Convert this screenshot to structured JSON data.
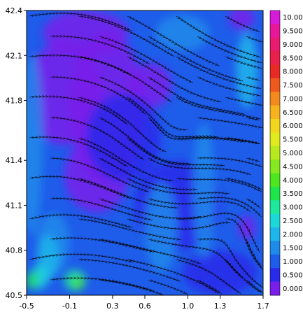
{
  "chart_data": {
    "type": "heatmap",
    "title": "",
    "xlabel": "",
    "ylabel": "",
    "xlim": [
      -0.5,
      1.7
    ],
    "ylim": [
      40.5,
      42.4
    ],
    "x_ticks": [
      "-0.5",
      "-0.1",
      "0.3",
      "0.6",
      "1.0",
      "1.3",
      "1.7"
    ],
    "x_tick_values": [
      -0.5,
      -0.1,
      0.3,
      0.6,
      1.0,
      1.3,
      1.7
    ],
    "y_ticks": [
      "40.5",
      "40.8",
      "41.1",
      "41.4",
      "41.8",
      "42.1",
      "42.4"
    ],
    "y_tick_values": [
      40.5,
      40.8,
      41.1,
      41.4,
      41.8,
      42.1,
      42.4
    ],
    "overlay": "streamlines",
    "colorbar": {
      "labels": [
        "10.00",
        "9.500",
        "9.000",
        "8.500",
        "8.000",
        "7.500",
        "7.000",
        "6.500",
        "6.000",
        "5.500",
        "5.000",
        "4.500",
        "4.000",
        "3.500",
        "3.000",
        "2.500",
        "2.000",
        "1.500",
        "1.000",
        "0.500",
        "0.000"
      ],
      "colors": [
        "#d51bd8",
        "#e8179a",
        "#e81b6e",
        "#e8204a",
        "#e82a25",
        "#ee5a1e",
        "#f28a1e",
        "#f6b31e",
        "#f2d61e",
        "#e0ea1e",
        "#b7ea1e",
        "#86e81e",
        "#4ee61e",
        "#1ee64a",
        "#1ee89c",
        "#1ed8d8",
        "#1eb6ea",
        "#1e8aea",
        "#1e5cea",
        "#2a2aea",
        "#7a1eea"
      ]
    },
    "field": {
      "background_level": 1.0,
      "regions": [
        {
          "level": 0.0,
          "x": -0.15,
          "y": 41.85,
          "rx": 0.35,
          "ry": 0.35
        },
        {
          "level": 0.0,
          "x": 0.25,
          "y": 41.75,
          "rx": 0.35,
          "ry": 0.5
        },
        {
          "level": 0.0,
          "x": 0.15,
          "y": 41.3,
          "rx": 0.3,
          "ry": 0.25
        },
        {
          "level": 0.0,
          "x": 0.05,
          "y": 42.25,
          "rx": 0.4,
          "ry": 0.15
        },
        {
          "level": 0.0,
          "x": 0.65,
          "y": 41.9,
          "rx": 0.2,
          "ry": 0.15
        },
        {
          "level": 0.0,
          "x": 1.5,
          "y": 42.35,
          "rx": 0.12,
          "ry": 0.08
        },
        {
          "level": 0.0,
          "x": 1.55,
          "y": 40.95,
          "rx": 0.08,
          "ry": 0.08
        },
        {
          "level": 0.5,
          "x": 0.4,
          "y": 41.55,
          "rx": 0.35,
          "ry": 0.3
        },
        {
          "level": 0.5,
          "x": 0.9,
          "y": 41.1,
          "rx": 0.4,
          "ry": 0.3
        },
        {
          "level": 0.5,
          "x": 1.3,
          "y": 40.65,
          "rx": 0.35,
          "ry": 0.15
        },
        {
          "level": 1.5,
          "x": -0.45,
          "y": 41.5,
          "rx": 0.1,
          "ry": 0.6
        },
        {
          "level": 1.5,
          "x": 1.15,
          "y": 41.2,
          "rx": 0.1,
          "ry": 0.45
        },
        {
          "level": 1.5,
          "x": 0.95,
          "y": 42.25,
          "rx": 0.25,
          "ry": 0.12
        },
        {
          "level": 1.5,
          "x": -0.25,
          "y": 40.85,
          "rx": 0.15,
          "ry": 0.2
        },
        {
          "level": 1.5,
          "x": 0.75,
          "y": 40.95,
          "rx": 0.15,
          "ry": 0.3
        },
        {
          "level": 2.0,
          "x": -0.3,
          "y": 40.75,
          "rx": 0.1,
          "ry": 0.15
        },
        {
          "level": 2.0,
          "x": 1.55,
          "y": 42.0,
          "rx": 0.1,
          "ry": 0.25
        },
        {
          "level": 2.5,
          "x": -0.38,
          "y": 40.62,
          "rx": 0.08,
          "ry": 0.08
        },
        {
          "level": 3.0,
          "x": -0.05,
          "y": 40.6,
          "rx": 0.1,
          "ry": 0.07
        },
        {
          "level": 3.5,
          "x": -0.45,
          "y": 40.6,
          "rx": 0.05,
          "ry": 0.06
        },
        {
          "level": 4.0,
          "x": -0.02,
          "y": 40.58,
          "rx": 0.05,
          "ry": 0.04
        }
      ]
    }
  }
}
